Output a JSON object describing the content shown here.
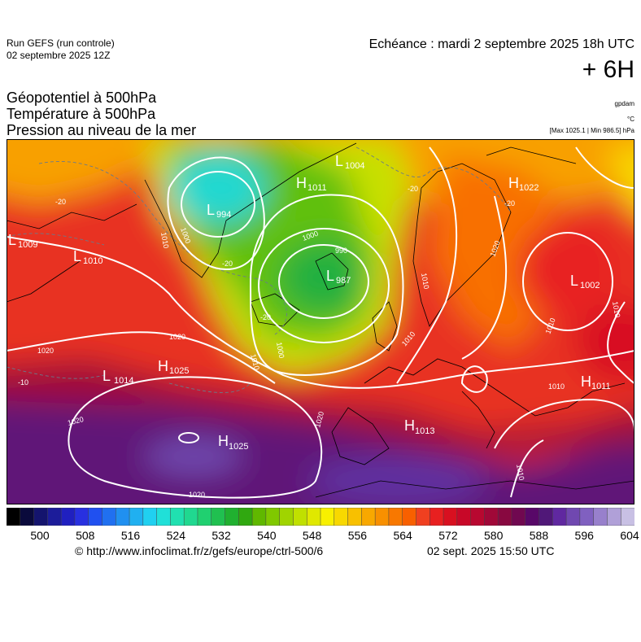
{
  "header": {
    "run_title": "Run GEFS (run controle)",
    "run_date": "02 septembre 2025 12Z",
    "echeance": "Echéance : mardi 2 septembre 2025 18h UTC",
    "lead": "+ 6H"
  },
  "fields": {
    "line1": "Géopotentiel à 500hPa",
    "line2": "Température à 500hPa",
    "line3": "Pression au niveau de la mer"
  },
  "units": {
    "geopotential": "gpdam",
    "temperature": "°C",
    "pressure_range": "[Max 1025.1 | Min 986.5] hPa"
  },
  "map": {
    "centers": [
      {
        "type": "L",
        "value": "1009"
      },
      {
        "type": "L",
        "value": "1010"
      },
      {
        "type": "L",
        "value": "994"
      },
      {
        "type": "H",
        "value": "1011"
      },
      {
        "type": "L",
        "value": "1004"
      },
      {
        "type": "L",
        "value": "987"
      },
      {
        "type": "H",
        "value": "1025"
      },
      {
        "type": "L",
        "value": "1014"
      },
      {
        "type": "H",
        "value": "1025"
      },
      {
        "type": "H",
        "value": "1013"
      },
      {
        "type": "H",
        "value": "1022"
      },
      {
        "type": "L",
        "value": "1002"
      },
      {
        "type": "H",
        "value": "1011"
      }
    ],
    "isobar_labels": [
      "1000",
      "1010",
      "990",
      "1000",
      "1010",
      "1020",
      "1020",
      "1020",
      "1020",
      "1010",
      "1010",
      "1010",
      "1010",
      "1010",
      "1010",
      "1000",
      "1020",
      "1020"
    ],
    "isotherm_labels": [
      "-20",
      "-20",
      "-20",
      "-20",
      "-20",
      "-10"
    ]
  },
  "colorbar": {
    "colors": [
      "#000000",
      "#0a0a3c",
      "#14146e",
      "#1c1c9a",
      "#2020c0",
      "#2830e0",
      "#2050f0",
      "#2070f0",
      "#2090f0",
      "#20b0f0",
      "#20d0f0",
      "#20e0d8",
      "#20e0b0",
      "#20d890",
      "#20d070",
      "#20c050",
      "#20b030",
      "#30a810",
      "#60b800",
      "#80c800",
      "#a0d400",
      "#c0e000",
      "#e0e800",
      "#f8f000",
      "#f8d800",
      "#f8c000",
      "#f8a800",
      "#f89000",
      "#f87800",
      "#f86000",
      "#f04020",
      "#e82020",
      "#d81020",
      "#c80828",
      "#b80830",
      "#a00838",
      "#880840",
      "#700850",
      "#580868",
      "#501878",
      "#6028a0",
      "#7048b0",
      "#8060c0",
      "#9880cc",
      "#b0a0d8",
      "#c8c0e4"
    ],
    "tick_labels": [
      "500",
      "508",
      "516",
      "524",
      "532",
      "540",
      "548",
      "556",
      "564",
      "572",
      "580",
      "588",
      "596",
      "604"
    ]
  },
  "footer": {
    "copyright": "© http://www.infoclimat.fr/z/gefs/europe/ctrl-500/6",
    "generated": "02 sept. 2025 15:50 UTC"
  }
}
